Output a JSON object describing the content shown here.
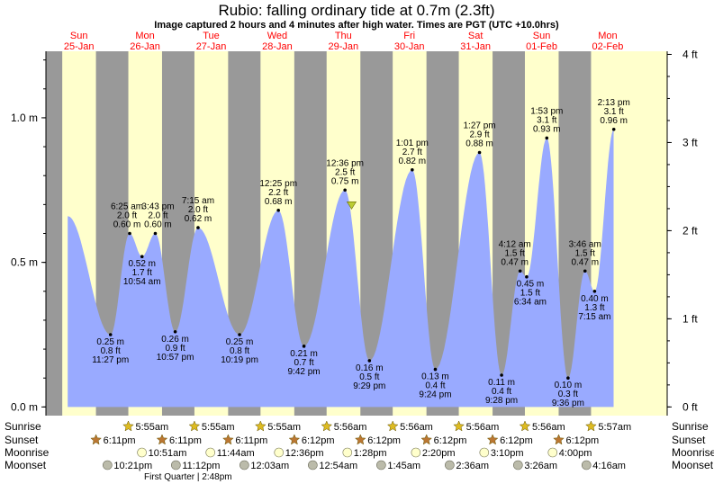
{
  "header": {
    "title": "Rubio: falling  ordinary tide at 0.7m (2.3ft)",
    "subtitle": "Image captured 2 hours and 4 minutes after high water. Times are PGT (UTC +10.0hrs)"
  },
  "chart_data": {
    "type": "area",
    "ylabel_left_unit": "m",
    "ylabel_right_unit": "ft",
    "ylim_m": [
      -0.03,
      1.23
    ],
    "xlim_days": [
      0,
      9.4
    ],
    "left_ticks": [
      "0.0 m",
      "0.5 m",
      "1.0 m"
    ],
    "left_tick_values": [
      0,
      0.5,
      1.0
    ],
    "right_ticks": [
      "0 ft",
      "1 ft",
      "2 ft",
      "3 ft",
      "4 ft"
    ],
    "right_tick_values_ft": [
      0,
      1,
      2,
      3,
      4
    ],
    "days": [
      {
        "name": "Sun",
        "date": "25-Jan"
      },
      {
        "name": "Mon",
        "date": "26-Jan"
      },
      {
        "name": "Tue",
        "date": "27-Jan"
      },
      {
        "name": "Wed",
        "date": "28-Jan"
      },
      {
        "name": "Thu",
        "date": "29-Jan"
      },
      {
        "name": "Fri",
        "date": "30-Jan"
      },
      {
        "name": "Sat",
        "date": "31-Jan"
      },
      {
        "name": "Sun",
        "date": "01-Feb"
      },
      {
        "name": "Mon",
        "date": "02-Feb"
      }
    ],
    "tide_extremes": [
      {
        "day": 0,
        "time": "11:27 pm",
        "m": "0.25 m",
        "ft": "0.8 ft",
        "value": 0.25,
        "type": "low"
      },
      {
        "day": 1,
        "time": "6:25 am",
        "m": "0.60 m",
        "ft": "2.0 ft",
        "value": 0.6,
        "type": "high"
      },
      {
        "day": 1,
        "time": "10:54 am",
        "m": "0.52 m",
        "ft": "1.7 ft",
        "value": 0.52,
        "type": "low"
      },
      {
        "day": 1,
        "time": "3:43 pm",
        "m": "0.60 m",
        "ft": "2.0 ft",
        "value": 0.6,
        "type": "high"
      },
      {
        "day": 1,
        "time": "10:57 pm",
        "m": "0.26 m",
        "ft": "0.9 ft",
        "value": 0.26,
        "type": "low"
      },
      {
        "day": 2,
        "time": "7:15 am",
        "m": "0.62 m",
        "ft": "2.0 ft",
        "value": 0.62,
        "type": "high"
      },
      {
        "day": 2,
        "time": "10:19 pm",
        "m": "0.25 m",
        "ft": "0.8 ft",
        "value": 0.25,
        "type": "low"
      },
      {
        "day": 3,
        "time": "12:25 pm",
        "m": "0.68 m",
        "ft": "2.2 ft",
        "value": 0.68,
        "type": "high"
      },
      {
        "day": 3,
        "time": "9:42 pm",
        "m": "0.21 m",
        "ft": "0.7 ft",
        "value": 0.21,
        "type": "low"
      },
      {
        "day": 4,
        "time": "12:36 pm",
        "m": "0.75 m",
        "ft": "2.5 ft",
        "value": 0.75,
        "type": "high"
      },
      {
        "day": 4,
        "time": "9:29 pm",
        "m": "0.16 m",
        "ft": "0.5 ft",
        "value": 0.16,
        "type": "low"
      },
      {
        "day": 5,
        "time": "1:01 pm",
        "m": "0.82 m",
        "ft": "2.7 ft",
        "value": 0.82,
        "type": "high"
      },
      {
        "day": 5,
        "time": "9:24 pm",
        "m": "0.13 m",
        "ft": "0.4 ft",
        "value": 0.13,
        "type": "low"
      },
      {
        "day": 6,
        "time": "1:27 pm",
        "m": "0.88 m",
        "ft": "2.9 ft",
        "value": 0.88,
        "type": "high"
      },
      {
        "day": 6,
        "time": "9:28 pm",
        "m": "0.11 m",
        "ft": "0.4 ft",
        "value": 0.11,
        "type": "low"
      },
      {
        "day": 7,
        "time": "4:12 am",
        "m": "0.47 m",
        "ft": "1.5 ft",
        "value": 0.47,
        "type": "high"
      },
      {
        "day": 7,
        "time": "6:34 am",
        "m": "0.45 m",
        "ft": "1.5 ft",
        "value": 0.45,
        "type": "low"
      },
      {
        "day": 7,
        "time": "1:53 pm",
        "m": "0.93 m",
        "ft": "3.1 ft",
        "value": 0.93,
        "type": "high"
      },
      {
        "day": 7,
        "time": "9:36 pm",
        "m": "0.10 m",
        "ft": "0.3 ft",
        "value": 0.1,
        "type": "low"
      },
      {
        "day": 8,
        "time": "3:46 am",
        "m": "0.47 m",
        "ft": "1.5 ft",
        "value": 0.47,
        "type": "high"
      },
      {
        "day": 8,
        "time": "7:15 am",
        "m": "0.40 m",
        "ft": "1.3 ft",
        "value": 0.4,
        "type": "low"
      },
      {
        "day": 8,
        "time": "2:13 pm",
        "m": "0.96 m",
        "ft": "3.1 ft",
        "value": 0.96,
        "type": "high"
      }
    ],
    "current": {
      "day": 4,
      "time": "2:40 pm",
      "value": 0.7
    },
    "nights": [
      {
        "set": 0.0,
        "rise": 0.247
      },
      {
        "set": 0.757,
        "rise": 1.247
      },
      {
        "set": 1.757,
        "rise": 2.247
      },
      {
        "set": 2.757,
        "rise": 3.247
      },
      {
        "set": 3.758,
        "rise": 4.247
      },
      {
        "set": 4.758,
        "rise": 5.247
      },
      {
        "set": 5.758,
        "rise": 6.247
      },
      {
        "set": 6.758,
        "rise": 7.247
      },
      {
        "set": 7.758,
        "rise": 8.248
      }
    ],
    "row_labels": {
      "sunrise": "Sunrise",
      "sunset": "Sunset",
      "moonrise": "Moonrise",
      "moonset": "Moonset"
    },
    "sunrise": [
      "5:55am",
      "5:55am",
      "5:55am",
      "5:56am",
      "5:56am",
      "5:56am",
      "5:56am",
      "5:57am"
    ],
    "sunset": [
      "6:11pm",
      "6:11pm",
      "6:11pm",
      "6:12pm",
      "6:12pm",
      "6:12pm",
      "6:12pm",
      "6:12pm"
    ],
    "moonrise": [
      "10:51am",
      "11:44am",
      "12:36pm",
      "1:28pm",
      "2:20pm",
      "3:10pm",
      "4:00pm"
    ],
    "moonset": [
      "10:21pm",
      "11:12pm",
      "12:03am",
      "12:54am",
      "1:45am",
      "2:36am",
      "3:26am",
      "4:16am"
    ],
    "moon_phase": "First Quarter | 2:48pm",
    "colors": {
      "day": "#ffffcc",
      "night": "#999999",
      "tide": "#99aaff",
      "frame_bg": "#ffffff",
      "day_label": "#ff0000",
      "sun_icon": "#ddbb22",
      "sunset_icon": "#bb7733",
      "moonrise_icon": "#ffffcc",
      "moonset_icon": "#bbbbaa"
    }
  }
}
